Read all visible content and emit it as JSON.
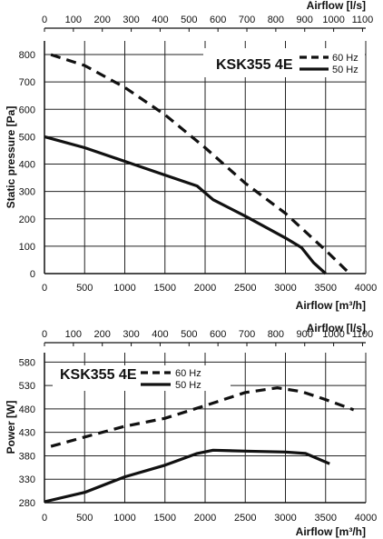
{
  "chart_data": [
    {
      "type": "line",
      "id": "pressure",
      "model_label": "KSK355 4E",
      "ylabel": "Static pressure [Pa]",
      "xlabel": "Airflow [m³/h]",
      "top_xlabel": "Airflow [l/s]",
      "xlim": [
        0,
        4000
      ],
      "ylim": [
        0,
        850
      ],
      "x_ticks": [
        0,
        500,
        1000,
        1500,
        2000,
        2500,
        3000,
        3500,
        4000
      ],
      "y_ticks": [
        0,
        100,
        200,
        300,
        400,
        500,
        600,
        700,
        800
      ],
      "top_x_ticks": [
        0,
        100,
        200,
        300,
        400,
        500,
        600,
        700,
        800,
        900,
        1000,
        1100
      ],
      "grid": true,
      "legend_position": "top-right",
      "series": [
        {
          "name": "60 Hz",
          "style": "dashed",
          "x": [
            80,
            500,
            1000,
            1500,
            2000,
            2500,
            3000,
            3500,
            3800
          ],
          "y": [
            800,
            760,
            680,
            580,
            460,
            330,
            220,
            85,
            0
          ]
        },
        {
          "name": "50 Hz",
          "style": "solid",
          "x": [
            0,
            500,
            1000,
            1500,
            1900,
            2100,
            2500,
            3000,
            3200,
            3350,
            3500
          ],
          "y": [
            500,
            460,
            410,
            360,
            320,
            270,
            210,
            130,
            95,
            40,
            0
          ]
        }
      ]
    },
    {
      "type": "line",
      "id": "power",
      "model_label": "KSK355 4E",
      "ylabel": "Power [W]",
      "xlabel": "Airflow [m³/h]",
      "top_xlabel": "Airflow [l/s]",
      "xlim": [
        0,
        4000
      ],
      "ylim": [
        280,
        600
      ],
      "x_ticks": [
        0,
        500,
        1000,
        1500,
        2000,
        2500,
        3000,
        3500,
        4000
      ],
      "y_ticks": [
        280,
        330,
        380,
        430,
        480,
        530,
        580
      ],
      "top_x_ticks": [
        0,
        100,
        200,
        300,
        400,
        500,
        600,
        700,
        800,
        900,
        1000,
        1100
      ],
      "grid": true,
      "legend_position": "top-left",
      "series": [
        {
          "name": "60 Hz",
          "style": "dashed",
          "x": [
            80,
            500,
            1000,
            1500,
            2000,
            2500,
            2900,
            3200,
            3500,
            3850
          ],
          "y": [
            400,
            420,
            443,
            460,
            487,
            515,
            525,
            517,
            500,
            478
          ]
        },
        {
          "name": "50 Hz",
          "style": "solid",
          "x": [
            0,
            500,
            1000,
            1500,
            1900,
            2100,
            2500,
            3000,
            3250,
            3550
          ],
          "y": [
            282,
            302,
            335,
            360,
            385,
            392,
            390,
            388,
            385,
            363
          ]
        }
      ]
    }
  ]
}
